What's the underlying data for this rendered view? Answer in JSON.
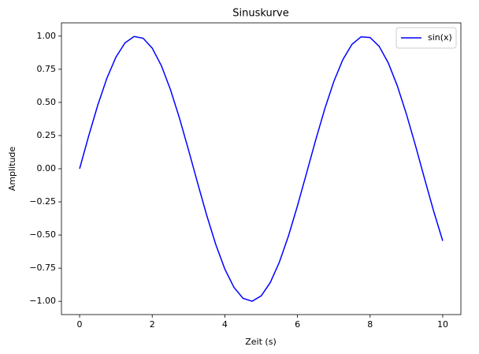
{
  "chart_data": {
    "type": "line",
    "title": "Sinuskurve",
    "x_label": "Zeit (s)",
    "y_label": "Amplitude",
    "x": [
      0,
      0.25,
      0.5,
      0.75,
      1,
      1.25,
      1.5,
      1.75,
      2,
      2.25,
      2.5,
      2.75,
      3,
      3.25,
      3.5,
      3.75,
      4,
      4.25,
      4.5,
      4.75,
      5,
      5.25,
      5.5,
      5.75,
      6,
      6.25,
      6.5,
      6.75,
      7,
      7.25,
      7.5,
      7.75,
      8,
      8.25,
      8.5,
      8.75,
      9,
      9.25,
      9.5,
      9.75,
      10
    ],
    "series": [
      {
        "name": "sin(x)",
        "color": "#0000ff",
        "values": [
          0,
          0.2474,
          0.4794,
          0.6816,
          0.8415,
          0.949,
          0.9975,
          0.984,
          0.9093,
          0.7781,
          0.5985,
          0.3817,
          0.1411,
          -0.1082,
          -0.3508,
          -0.5716,
          -0.7568,
          -0.895,
          -0.9775,
          -0.9993,
          -0.9589,
          -0.8589,
          -0.7055,
          -0.5083,
          -0.2794,
          -0.0332,
          0.2151,
          0.45,
          0.657,
          0.8231,
          0.938,
          0.9946,
          0.9894,
          0.9228,
          0.7985,
          0.6247,
          0.4121,
          0.1743,
          -0.0752,
          -0.3195,
          -0.544
        ]
      }
    ],
    "xlim": [
      -0.5,
      10.5
    ],
    "ylim": [
      -1.1,
      1.1
    ],
    "xticks": [
      0,
      2,
      4,
      6,
      8,
      10
    ],
    "yticks": [
      {
        "value": -1,
        "label": "−1.00"
      },
      {
        "value": -0.75,
        "label": "−0.75"
      },
      {
        "value": -0.5,
        "label": "−0.50"
      },
      {
        "value": -0.25,
        "label": "−0.25"
      },
      {
        "value": 0,
        "label": "0.00"
      },
      {
        "value": 0.25,
        "label": "0.25"
      },
      {
        "value": 0.5,
        "label": "0.50"
      },
      {
        "value": 0.75,
        "label": "0.75"
      },
      {
        "value": 1,
        "label": "1.00"
      }
    ],
    "grid": false,
    "legend": "upper right"
  }
}
